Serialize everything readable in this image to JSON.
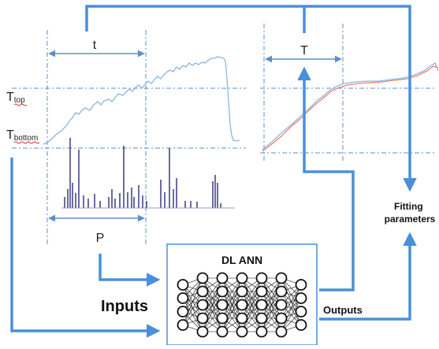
{
  "labels": {
    "t": "t",
    "T": "T",
    "P": "P",
    "t_top_main": "T",
    "t_top_sub": "top",
    "t_bottom_main": "T",
    "t_bottom_sub": "bottom",
    "inputs": "Inputs",
    "outputs": "Outputs",
    "ann_title": "DL ANN",
    "fitting_line1": "Fitting",
    "fitting_line2": "parameters"
  },
  "colors": {
    "arrow": "#4a90d9",
    "temperature_curve": "#8ab6e0",
    "pulse_bars": "#2e2a7a",
    "dashed_guides": "#5b8fc7",
    "fit_orange": "#e8866a",
    "box_border": "#4a90d9"
  },
  "icons": {
    "network": "neural-network-icon"
  }
}
